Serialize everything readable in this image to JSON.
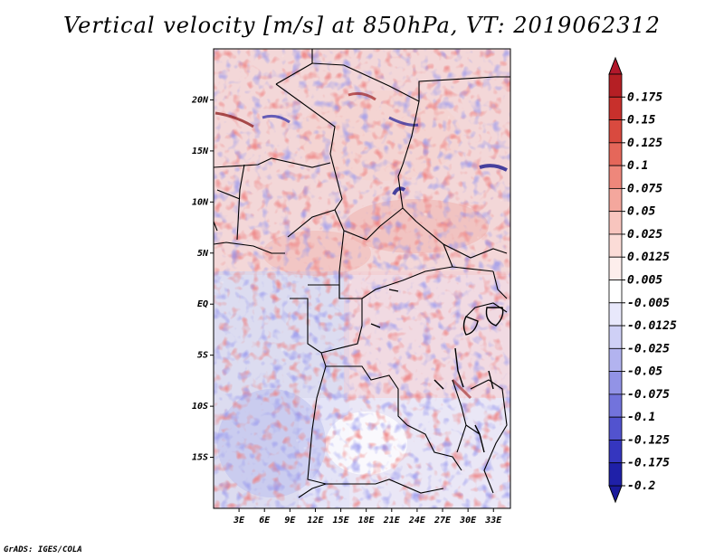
{
  "title": "Vertical velocity [m/s] at 850hPa, VT: 2019062312",
  "footer": "GrADS: IGES/COLA",
  "map": {
    "lon_range": [
      0,
      35
    ],
    "lat_range": [
      -20,
      25
    ],
    "x_ticks": [
      {
        "lon": 3,
        "label": "3E"
      },
      {
        "lon": 6,
        "label": "6E"
      },
      {
        "lon": 9,
        "label": "9E"
      },
      {
        "lon": 12,
        "label": "12E"
      },
      {
        "lon": 15,
        "label": "15E"
      },
      {
        "lon": 18,
        "label": "18E"
      },
      {
        "lon": 21,
        "label": "21E"
      },
      {
        "lon": 24,
        "label": "24E"
      },
      {
        "lon": 27,
        "label": "27E"
      },
      {
        "lon": 30,
        "label": "30E"
      },
      {
        "lon": 33,
        "label": "33E"
      }
    ],
    "y_ticks": [
      {
        "lat": 20,
        "label": "20N"
      },
      {
        "lat": 15,
        "label": "15N"
      },
      {
        "lat": 10,
        "label": "10N"
      },
      {
        "lat": 5,
        "label": "5N"
      },
      {
        "lat": 0,
        "label": "EQ"
      },
      {
        "lat": -5,
        "label": "5S"
      },
      {
        "lat": -10,
        "label": "10S"
      },
      {
        "lat": -15,
        "label": "15S"
      }
    ]
  },
  "colorbar": {
    "top_color": "#b2182b",
    "bottom_color": "#1a1a9c",
    "levels": [
      {
        "label": "0.175",
        "color": "#b51f24"
      },
      {
        "label": "0.15",
        "color": "#c8302c"
      },
      {
        "label": "0.125",
        "color": "#d94a3f"
      },
      {
        "label": "0.1",
        "color": "#e5675a"
      },
      {
        "label": "0.075",
        "color": "#ee877b"
      },
      {
        "label": "0.05",
        "color": "#f4a79d"
      },
      {
        "label": "0.025",
        "color": "#f8c5be"
      },
      {
        "label": "0.0125",
        "color": "#fbdcd7"
      },
      {
        "label": "0.005",
        "color": "#fdeeec"
      },
      {
        "label": "-0.005",
        "color": "#ffffff"
      },
      {
        "label": "-0.0125",
        "color": "#e8e8fb"
      },
      {
        "label": "-0.025",
        "color": "#cfd0f6"
      },
      {
        "label": "-0.05",
        "color": "#b2b3ef"
      },
      {
        "label": "-0.075",
        "color": "#9293e6"
      },
      {
        "label": "-0.1",
        "color": "#7273dc"
      },
      {
        "label": "-0.125",
        "color": "#5253cf"
      },
      {
        "label": "-0.175",
        "color": "#3536bf"
      },
      {
        "label": "-0.2",
        "color": "#1f20a8"
      }
    ]
  },
  "field_colors": {
    "positive_strong": "#d73030",
    "positive_weak": "#f2a09a",
    "negative_strong": "#3e3fc8",
    "negative_weak": "#a8a9ee",
    "land_outline": "#000000"
  }
}
